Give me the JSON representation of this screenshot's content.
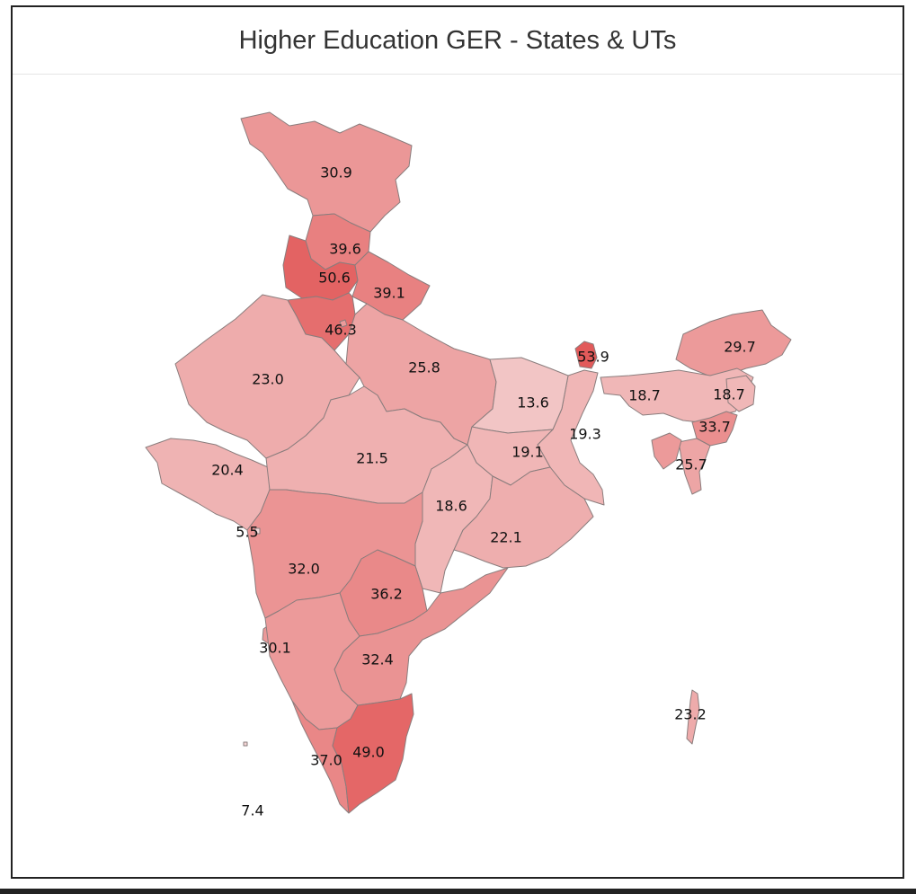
{
  "title": "Higher Education GER - States & UTs",
  "colors": {
    "low": "#f5dada",
    "high": "#e25a5a",
    "border": "#8a7d7d",
    "frame": "#222222"
  },
  "regions": [
    {
      "id": "jammu-kashmir",
      "value": 30.9
    },
    {
      "id": "himachal-pradesh",
      "value": 39.6
    },
    {
      "id": "punjab",
      "value": 50.6
    },
    {
      "id": "uttarakhand",
      "value": 39.1
    },
    {
      "id": "haryana",
      "value": 46.3
    },
    {
      "id": "rajasthan",
      "value": 23.0
    },
    {
      "id": "uttar-pradesh",
      "value": 25.8
    },
    {
      "id": "sikkim",
      "value": 53.9
    },
    {
      "id": "arunachal-pradesh",
      "value": 29.7
    },
    {
      "id": "bihar",
      "value": 13.6
    },
    {
      "id": "assam",
      "value": 18.7
    },
    {
      "id": "nagaland",
      "value": 18.7
    },
    {
      "id": "meghalaya",
      "value": 33.7
    },
    {
      "id": "jharkhand",
      "value": 19.1
    },
    {
      "id": "west-bengal",
      "value": 19.3
    },
    {
      "id": "mizoram",
      "value": 25.7
    },
    {
      "id": "gujarat",
      "value": 20.4
    },
    {
      "id": "madhya-pradesh",
      "value": 21.5
    },
    {
      "id": "chhattisgarh",
      "value": 18.6
    },
    {
      "id": "odisha",
      "value": 22.1
    },
    {
      "id": "daman-diu",
      "value": 5.5
    },
    {
      "id": "maharashtra",
      "value": 32.0
    },
    {
      "id": "telangana",
      "value": 36.2
    },
    {
      "id": "goa",
      "value": 30.1
    },
    {
      "id": "andhra-pradesh",
      "value": 32.4
    },
    {
      "id": "andaman-nicobar",
      "value": 23.2
    },
    {
      "id": "kerala",
      "value": 37.0
    },
    {
      "id": "tamil-nadu",
      "value": 49.0
    },
    {
      "id": "lakshadweep",
      "value": 7.4
    }
  ]
}
